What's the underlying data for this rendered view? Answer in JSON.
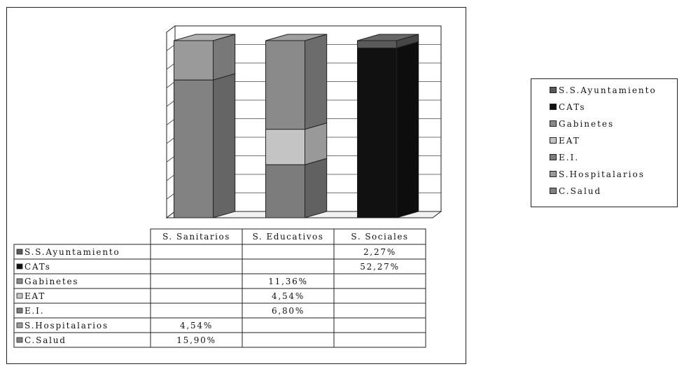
{
  "colors": {
    "S.S.Ayuntamiento": "#5a5a5a",
    "CATs": "#111111",
    "Gabinetes": "#8a8a8a",
    "EAT": "#c4c4c4",
    "E.I.": "#7c7c7c",
    "S.Hospitalarios": "#9a9a9a",
    "C.Salud": "#828282"
  },
  "chart_data": {
    "type": "bar",
    "stacked": true,
    "three_d": true,
    "categories": [
      "S. Sanitarios",
      "S. Educativos",
      "S. Sociales"
    ],
    "series": [
      {
        "name": "S.S.Ayuntamiento",
        "values": [
          null,
          null,
          2.27
        ],
        "labels": [
          "",
          "",
          "2,27%"
        ]
      },
      {
        "name": "CATs",
        "values": [
          null,
          null,
          52.27
        ],
        "labels": [
          "",
          "",
          "52,27%"
        ]
      },
      {
        "name": "Gabinetes",
        "values": [
          null,
          11.36,
          null
        ],
        "labels": [
          "",
          "11,36%",
          ""
        ]
      },
      {
        "name": "EAT",
        "values": [
          null,
          4.54,
          null
        ],
        "labels": [
          "",
          "4,54%",
          ""
        ]
      },
      {
        "name": "E.I.",
        "values": [
          null,
          6.8,
          null
        ],
        "labels": [
          "",
          "6,80%",
          ""
        ]
      },
      {
        "name": "S.Hospitalarios",
        "values": [
          4.54,
          null,
          null
        ],
        "labels": [
          "4,54%",
          "",
          ""
        ]
      },
      {
        "name": "C.Salud",
        "values": [
          15.9,
          null,
          null
        ],
        "labels": [
          "15,90%",
          "",
          ""
        ]
      }
    ],
    "data_table": true,
    "grid": true,
    "legend": "right"
  }
}
